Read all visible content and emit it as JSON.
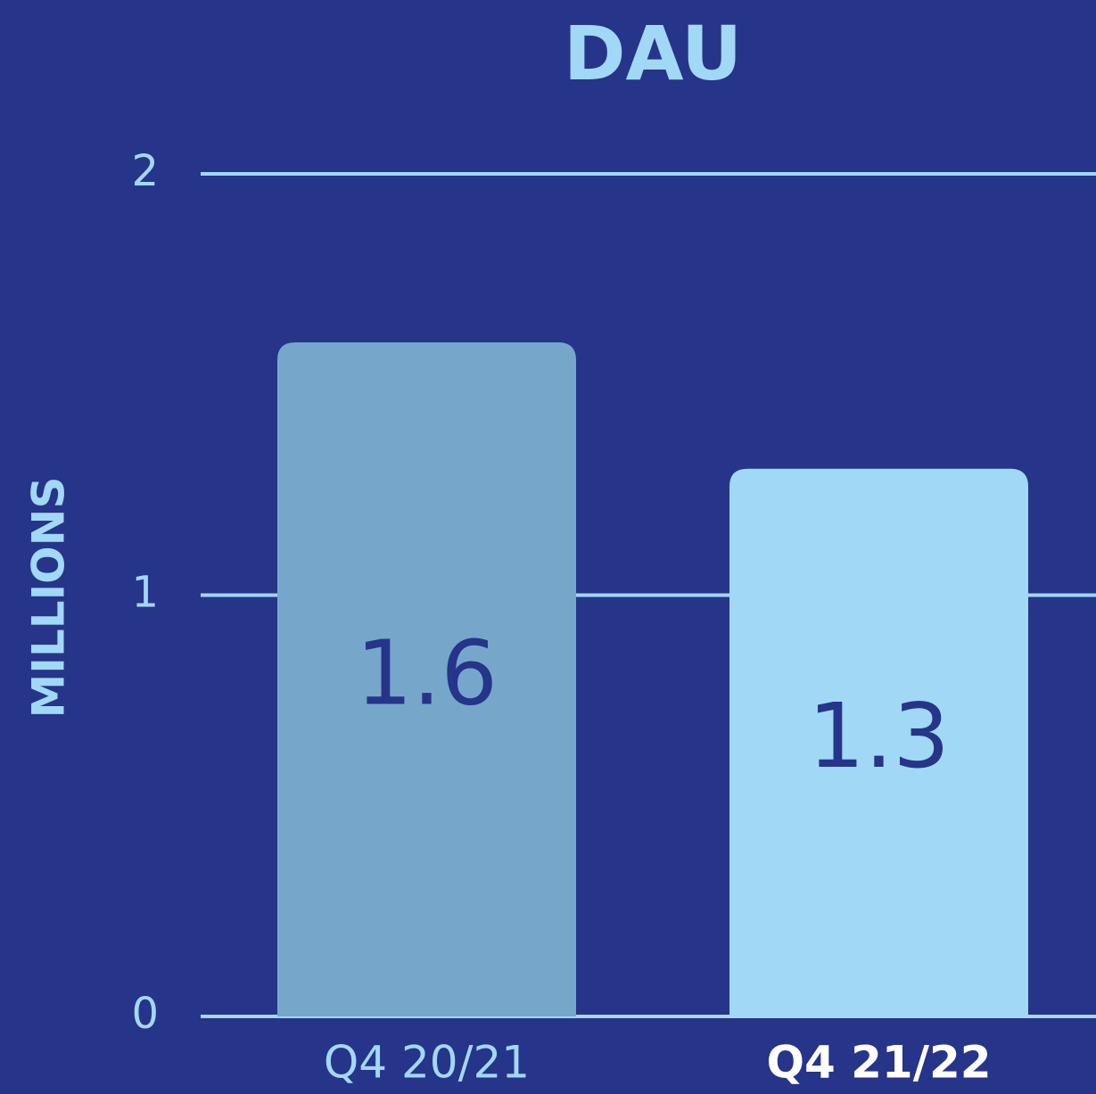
{
  "chart_data": {
    "type": "bar",
    "title": "DAU",
    "ylabel": "MILLIONS",
    "categories": [
      "Q4 20/21",
      "Q4 21/22"
    ],
    "values": [
      1.6,
      1.3
    ],
    "colors": [
      "#76a7cb",
      "#a1d8f5"
    ],
    "category_colors": [
      "#a1d8f5",
      "#ffffff"
    ],
    "ylim": [
      0,
      2
    ],
    "yticks": [
      0,
      1,
      2
    ],
    "grid": true
  }
}
